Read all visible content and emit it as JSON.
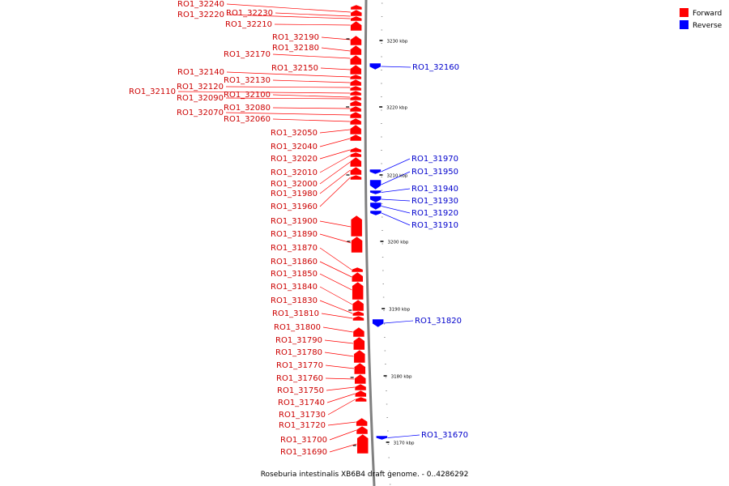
{
  "caption": "Roseburia intestinalis XB6B4 draft genome. - 0..4286292",
  "legend": [
    {
      "label": "Forward",
      "color": "#ff0000"
    },
    {
      "label": "Reverse",
      "color": "#0000ff"
    }
  ],
  "colors": {
    "forward": "#ff0000",
    "reverse": "#0000ff",
    "backbone": "#808080",
    "label_forward": "#cc0000",
    "label_reverse": "#0000cc"
  },
  "ticks": [
    "3230 kbp",
    "3220 kbp",
    "3210 kbp",
    "3200 kbp",
    "3190 kbp",
    "3180 kbp",
    "3170 kbp"
  ],
  "forward_genes": [
    "RO1_32240",
    "RO1_32230",
    "RO1_32220",
    "RO1_32210",
    "RO1_32190",
    "RO1_32180",
    "RO1_32170",
    "RO1_32150",
    "RO1_32140",
    "RO1_32130",
    "RO1_32120",
    "RO1_32110",
    "RO1_32100",
    "RO1_32090",
    "RO1_32080",
    "RO1_32070",
    "RO1_32060",
    "RO1_32050",
    "RO1_32040",
    "RO1_32020",
    "RO1_32010",
    "RO1_32000",
    "RO1_31980",
    "RO1_31960",
    "RO1_31900",
    "RO1_31890",
    "RO1_31870",
    "RO1_31860",
    "RO1_31850",
    "RO1_31840",
    "RO1_31830",
    "RO1_31810",
    "RO1_31800",
    "RO1_31790",
    "RO1_31780",
    "RO1_31770",
    "RO1_31760",
    "RO1_31750",
    "RO1_31740",
    "RO1_31730",
    "RO1_31720",
    "RO1_31700",
    "RO1_31690"
  ],
  "reverse_genes": [
    "RO1_32160",
    "RO1_31970",
    "RO1_31950",
    "RO1_31940",
    "RO1_31930",
    "RO1_31920",
    "RO1_31910",
    "RO1_31820",
    "RO1_31670"
  ]
}
